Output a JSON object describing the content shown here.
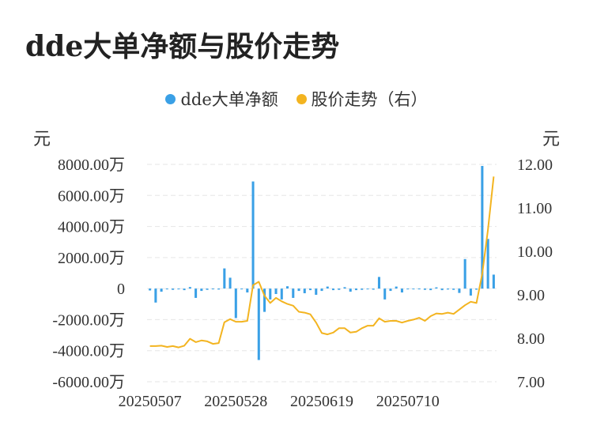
{
  "title": "dde大单净额与股价走势",
  "units": {
    "left": "元",
    "right": "元"
  },
  "colors": {
    "bar": "#3aa0e6",
    "line": "#f3b420",
    "grid": "#e6e6e6"
  },
  "chart_data": {
    "type": "bar+line",
    "title": "dde大单净额与股价走势",
    "legend": [
      {
        "name": "dde大单净额",
        "color": "#3aa0e6",
        "shape": "dot"
      },
      {
        "name": "股价走势（右）",
        "color": "#f3b420",
        "shape": "dot"
      }
    ],
    "legend_position": "top-center",
    "y_left": {
      "unit": "元",
      "ticks": [
        "8000.00万",
        "6000.00万",
        "4000.00万",
        "2000.00万",
        "0",
        "-2000.00万",
        "-4000.00万",
        "-6000.00万"
      ],
      "range": [
        -6000,
        8000
      ],
      "value_unit": "万"
    },
    "y_right": {
      "unit": "元",
      "ticks": [
        "12.00",
        "11.00",
        "10.00",
        "9.00",
        "8.00",
        "7.00"
      ],
      "range": [
        7.0,
        12.0
      ]
    },
    "x_tick_labels": [
      "20250507",
      "20250528",
      "20250619",
      "20250710"
    ],
    "x_tick_label_indices": [
      0,
      15,
      30,
      45
    ],
    "series": [
      {
        "name": "dde大单净额",
        "type": "bar",
        "axis": "left",
        "values": [
          -120,
          -900,
          -200,
          -50,
          -80,
          -20,
          -100,
          100,
          -600,
          -150,
          -80,
          -40,
          -60,
          1300,
          700,
          -1900,
          0,
          -250,
          6900,
          -4600,
          -1500,
          -700,
          -350,
          -700,
          150,
          -600,
          -150,
          -300,
          -100,
          -400,
          -150,
          130,
          -100,
          -80,
          90,
          -200,
          -100,
          -80,
          -50,
          -70,
          750,
          -700,
          -150,
          130,
          -250,
          -30,
          -40,
          -30,
          -80,
          -100,
          80,
          -100,
          -60,
          -80,
          -280,
          1900,
          -450,
          -70,
          7900,
          3200,
          900
        ],
        "value_unit": "万元"
      },
      {
        "name": "股价走势（右）",
        "type": "line",
        "axis": "right",
        "values": [
          7.82,
          7.82,
          7.83,
          7.8,
          7.82,
          7.79,
          7.83,
          7.99,
          7.91,
          7.95,
          7.93,
          7.87,
          7.89,
          8.37,
          8.44,
          8.38,
          8.38,
          8.4,
          9.22,
          9.3,
          8.98,
          8.81,
          8.93,
          8.85,
          8.79,
          8.75,
          8.61,
          8.59,
          8.55,
          8.36,
          8.12,
          8.09,
          8.13,
          8.23,
          8.23,
          8.13,
          8.15,
          8.23,
          8.29,
          8.29,
          8.46,
          8.38,
          8.4,
          8.4,
          8.36,
          8.4,
          8.43,
          8.47,
          8.4,
          8.51,
          8.57,
          8.56,
          8.59,
          8.56,
          8.66,
          8.76,
          8.84,
          8.81,
          9.48,
          10.49,
          11.72
        ]
      }
    ],
    "grid": true,
    "grid_style": "dashed-horizontal"
  }
}
